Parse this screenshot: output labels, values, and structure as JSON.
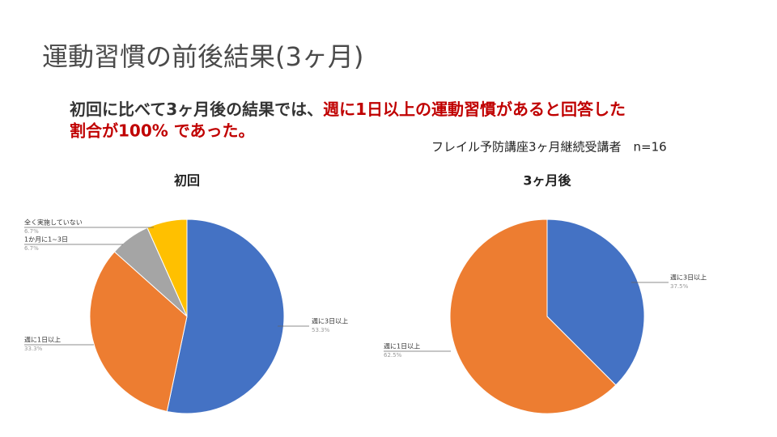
{
  "title": "運動習慣の前後結果(3ヶ月)",
  "summary": {
    "black": "初回に比べて3ヶ月後の結果では、",
    "red_line1": "週に1日以上の運動習慣があると回答した",
    "red_line2": "割合が100% であった。"
  },
  "note": "フレイル予防講座3ヶ月継続受講者　n=16",
  "chart_data": [
    {
      "type": "pie",
      "title": "初回",
      "categories": [
        "週に3日以上",
        "週に1日以上",
        "1か月に1~3日",
        "全く実施していない"
      ],
      "values": [
        53.3,
        33.3,
        6.7,
        6.7
      ],
      "value_labels": [
        "53.3%",
        "33.3%",
        "6.7%",
        "6.7%"
      ],
      "colors": [
        "#4472c4",
        "#ed7d31",
        "#a5a5a5",
        "#ffc000"
      ]
    },
    {
      "type": "pie",
      "title": "3ヶ月後",
      "categories": [
        "週に3日以上",
        "週に1日以上"
      ],
      "values": [
        37.5,
        62.5
      ],
      "value_labels": [
        "37.5%",
        "62.5%"
      ],
      "colors": [
        "#4472c4",
        "#ed7d31"
      ]
    }
  ]
}
